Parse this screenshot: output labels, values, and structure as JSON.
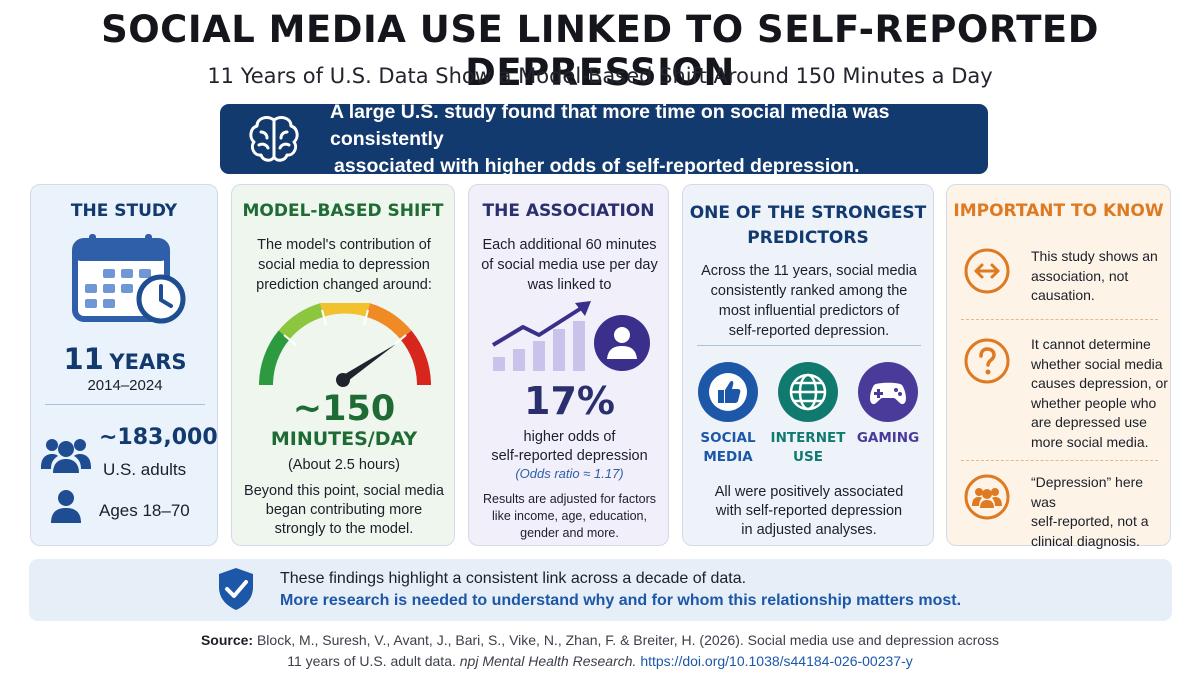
{
  "title": "SOCIAL MEDIA USE LINKED TO SELF-REPORTED DEPRESSION",
  "subtitle": "11 Years of U.S. Data Show a Model-Based Shift Around 150 Minutes a Day",
  "banner": {
    "icon": "brain-icon",
    "line1": "A large U.S. study found that more time on social media was consistently",
    "line2": "associated with higher odds of self-reported depression."
  },
  "study": {
    "title": "THE STUDY",
    "icon": "calendar-clock-icon",
    "years_number": "11",
    "years_word": "YEARS",
    "range": "2014–2024",
    "participants": "~183,000",
    "participants_label": "U.S. adults",
    "ages": "Ages 18–70"
  },
  "shift": {
    "title": "MODEL-BASED SHIFT",
    "desc1": "The model's contribution of",
    "desc2": "social media to depression",
    "desc3": "prediction changed around:",
    "value": "~150",
    "unit": "MINUTES/DAY",
    "note": "(About 2.5 hours)",
    "after1": "Beyond this point, social media",
    "after2": "began contributing more",
    "after3": "strongly to the model."
  },
  "association": {
    "title": "THE ASSOCIATION",
    "desc1": "Each additional 60 minutes",
    "desc2": "of social media use per day",
    "desc3": "was linked to",
    "percent": "17%",
    "label1": "higher odds of",
    "label2": "self-reported depression",
    "odds": "(Odds ratio ≈ 1.17)",
    "adj1": "Results are adjusted for factors",
    "adj2": "like income, age, education,",
    "adj3": "gender and more."
  },
  "predictors": {
    "title1": "ONE OF THE STRONGEST",
    "title2": "PREDICTORS",
    "desc1": "Across the 11 years, social media",
    "desc2": "consistently ranked among the",
    "desc3": "most influential predictors of",
    "desc4": "self-reported depression.",
    "items": [
      {
        "icon": "thumbs-up-icon",
        "line1": "SOCIAL",
        "line2": "MEDIA",
        "color": "#1d57a8"
      },
      {
        "icon": "globe-icon",
        "line1": "INTERNET",
        "line2": "USE",
        "color": "#117a6e"
      },
      {
        "icon": "gamepad-icon",
        "line1": "GAMING",
        "line2": "",
        "color": "#4a3a9a"
      }
    ],
    "foot1": "All were positively associated",
    "foot2": "with self-reported depression",
    "foot3": "in adjusted analyses."
  },
  "important": {
    "title": "IMPORTANT TO KNOW",
    "items": [
      {
        "icon": "double-arrow-icon",
        "lines": [
          "This study shows an",
          "association, not",
          "causation."
        ]
      },
      {
        "icon": "question-icon",
        "lines": [
          "It cannot determine",
          "whether social media",
          "causes depression, or",
          "whether people who",
          "are depressed use",
          "more social media."
        ]
      },
      {
        "icon": "people-icon",
        "lines": [
          "“Depression” here was",
          "self-reported, not a",
          "clinical diagnosis."
        ]
      }
    ]
  },
  "footer": {
    "line1": "These findings highlight a consistent link across a decade of data.",
    "line2": "More research is needed to understand why and for whom this relationship matters most."
  },
  "source": {
    "label": "Source:",
    "text1": "Block, M., Suresh, V., Avant, J., Bari, S., Vike, N., Zhan, F. & Breiter, H. (2026). Social media use and depression across",
    "text2a": "11 years of U.S. adult data.",
    "journal": "npj Mental Health Research.",
    "doi": "https://doi.org/10.1038/s44184-026-00237-y"
  },
  "colors": {
    "navy": "#123a6e",
    "green": "#1e6b34",
    "purple": "#2b2f6e",
    "orange": "#de7a22",
    "link": "#1d57a8"
  }
}
